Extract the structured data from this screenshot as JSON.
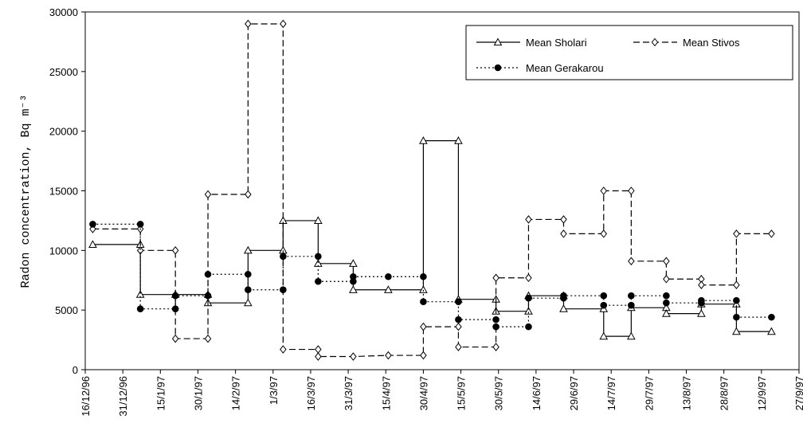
{
  "chart_data": {
    "type": "line",
    "y_label": "Radon concentration, Bq m⁻³",
    "xlim": [
      "16/12/96",
      "27/9/97"
    ],
    "xticks": [
      "16/12/96",
      "31/12/96",
      "15/1/97",
      "30/1/97",
      "14/2/97",
      "1/3/97",
      "16/3/97",
      "31/3/97",
      "15/4/97",
      "30/4/97",
      "15/5/97",
      "30/5/97",
      "14/6/97",
      "29/6/97",
      "14/7/97",
      "29/7/97",
      "13/8/97",
      "28/8/97",
      "12/9/97",
      "27/9/97"
    ],
    "ylim": [
      0,
      30000
    ],
    "yticks": [
      0,
      5000,
      10000,
      15000,
      20000,
      25000,
      30000
    ],
    "legend": "upper right",
    "series": [
      {
        "name": "Mean Sholari",
        "color": "#000000",
        "marker": "triangle",
        "dash": "solid",
        "x": [
          "19/12/96",
          "7/1/97",
          "7/1/97",
          "21/1/97",
          "3/2/97",
          "3/2/97",
          "19/2/97",
          "19/2/97",
          "5/3/97",
          "5/3/97",
          "19/3/97",
          "19/3/97",
          "2/4/97",
          "2/4/97",
          "16/4/97",
          "30/4/97",
          "30/4/97",
          "14/5/97",
          "14/5/97",
          "29/5/97",
          "29/5/97",
          "11/6/97",
          "11/6/97",
          "25/6/97",
          "25/6/97",
          "11/7/97",
          "11/7/97",
          "22/7/97",
          "22/7/97",
          "5/8/97",
          "5/8/97",
          "19/8/97",
          "19/8/97",
          "2/9/97",
          "2/9/97",
          "16/9/97"
        ],
        "values": [
          10500,
          10500,
          6300,
          6300,
          6300,
          5600,
          5600,
          10000,
          10000,
          12500,
          12500,
          8900,
          8900,
          6700,
          6700,
          6700,
          19200,
          19200,
          5900,
          5900,
          4900,
          4900,
          6200,
          6200,
          5100,
          5100,
          2800,
          2800,
          5200,
          5200,
          4700,
          4700,
          5500,
          5500,
          3200,
          3200
        ]
      },
      {
        "name": "Mean Stivos",
        "color": "#000000",
        "marker": "diamond",
        "dash": "dashed",
        "x": [
          "19/12/96",
          "7/1/97",
          "7/1/97",
          "21/1/97",
          "21/1/97",
          "3/2/97",
          "3/2/97",
          "19/2/97",
          "19/2/97",
          "5/3/97",
          "5/3/97",
          "19/3/97",
          "19/3/97",
          "2/4/97",
          "16/4/97",
          "30/4/97",
          "30/4/97",
          "14/5/97",
          "14/5/97",
          "29/5/97",
          "29/5/97",
          "11/6/97",
          "11/6/97",
          "25/6/97",
          "25/6/97",
          "11/7/97",
          "11/7/97",
          "22/7/97",
          "22/7/97",
          "5/8/97",
          "5/8/97",
          "19/8/97",
          "19/8/97",
          "2/9/97",
          "2/9/97",
          "16/9/97"
        ],
        "values": [
          11800,
          11800,
          10000,
          10000,
          2600,
          2600,
          14700,
          14700,
          29000,
          29000,
          1700,
          1700,
          1100,
          1100,
          1200,
          1200,
          3600,
          3600,
          1900,
          1900,
          7700,
          7700,
          12600,
          12600,
          11400,
          11400,
          15000,
          15000,
          9100,
          9100,
          7600,
          7600,
          7100,
          7100,
          11400,
          11400
        ]
      },
      {
        "name": "Mean Gerakarou",
        "color": "#000000",
        "marker": "circle",
        "dash": "dotted",
        "x": [
          "19/12/96",
          "7/1/97",
          "7/1/97",
          "21/1/97",
          "21/1/97",
          "3/2/97",
          "3/2/97",
          "19/2/97",
          "19/2/97",
          "5/3/97",
          "5/3/97",
          "19/3/97",
          "19/3/97",
          "2/4/97",
          "2/4/97",
          "16/4/97",
          "30/4/97",
          "30/4/97",
          "14/5/97",
          "14/5/97",
          "29/5/97",
          "29/5/97",
          "11/6/97",
          "11/6/97",
          "25/6/97",
          "25/6/97",
          "11/7/97",
          "11/7/97",
          "22/7/97",
          "22/7/97",
          "5/8/97",
          "5/8/97",
          "19/8/97",
          "19/8/97",
          "2/9/97",
          "2/9/97",
          "16/9/97"
        ],
        "values": [
          12200,
          12200,
          5100,
          5100,
          6200,
          6200,
          8000,
          8000,
          6700,
          6700,
          9500,
          9500,
          7400,
          7400,
          7800,
          7800,
          7800,
          5700,
          5700,
          4200,
          4200,
          3600,
          3600,
          6000,
          6000,
          6200,
          6200,
          5400,
          5400,
          6200,
          6200,
          5600,
          5600,
          5800,
          5800,
          4400,
          4400
        ]
      }
    ]
  }
}
